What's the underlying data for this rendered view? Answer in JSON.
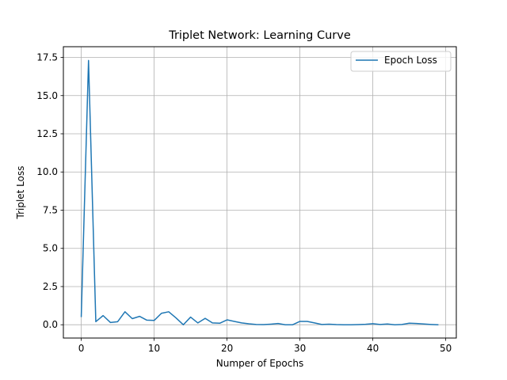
{
  "chart_data": {
    "type": "line",
    "title": "Triplet Network: Learning Curve",
    "xlabel": "Numper of Epochs",
    "ylabel": "Triplet Loss",
    "xlim": [
      -2.45,
      51.45
    ],
    "ylim": [
      -0.87,
      18.2
    ],
    "xticks": [
      0,
      10,
      20,
      30,
      40,
      50
    ],
    "yticks": [
      0.0,
      2.5,
      5.0,
      7.5,
      10.0,
      12.5,
      15.0,
      17.5
    ],
    "ytick_labels": [
      "0.0",
      "2.5",
      "5.0",
      "7.5",
      "10.0",
      "12.5",
      "15.0",
      "17.5"
    ],
    "grid": true,
    "legend_position": "top-right",
    "series": [
      {
        "name": "Epoch Loss",
        "color": "#1f77b4",
        "x": [
          0,
          1,
          2,
          3,
          4,
          5,
          6,
          7,
          8,
          9,
          10,
          11,
          12,
          13,
          14,
          15,
          16,
          17,
          18,
          19,
          20,
          21,
          22,
          23,
          24,
          25,
          26,
          27,
          28,
          29,
          30,
          31,
          32,
          33,
          34,
          35,
          36,
          37,
          38,
          39,
          40,
          41,
          42,
          43,
          44,
          45,
          46,
          47,
          48,
          49
        ],
        "values": [
          0.5,
          17.3,
          0.2,
          0.6,
          0.15,
          0.2,
          0.85,
          0.4,
          0.55,
          0.3,
          0.28,
          0.75,
          0.85,
          0.45,
          0.0,
          0.5,
          0.12,
          0.42,
          0.12,
          0.1,
          0.32,
          0.22,
          0.12,
          0.06,
          0.02,
          0.01,
          0.04,
          0.08,
          0.0,
          0.0,
          0.22,
          0.22,
          0.12,
          0.02,
          0.04,
          0.01,
          0.0,
          0.0,
          0.01,
          0.03,
          0.07,
          0.02,
          0.05,
          0.0,
          0.02,
          0.1,
          0.08,
          0.05,
          0.02,
          0.0
        ]
      }
    ]
  }
}
